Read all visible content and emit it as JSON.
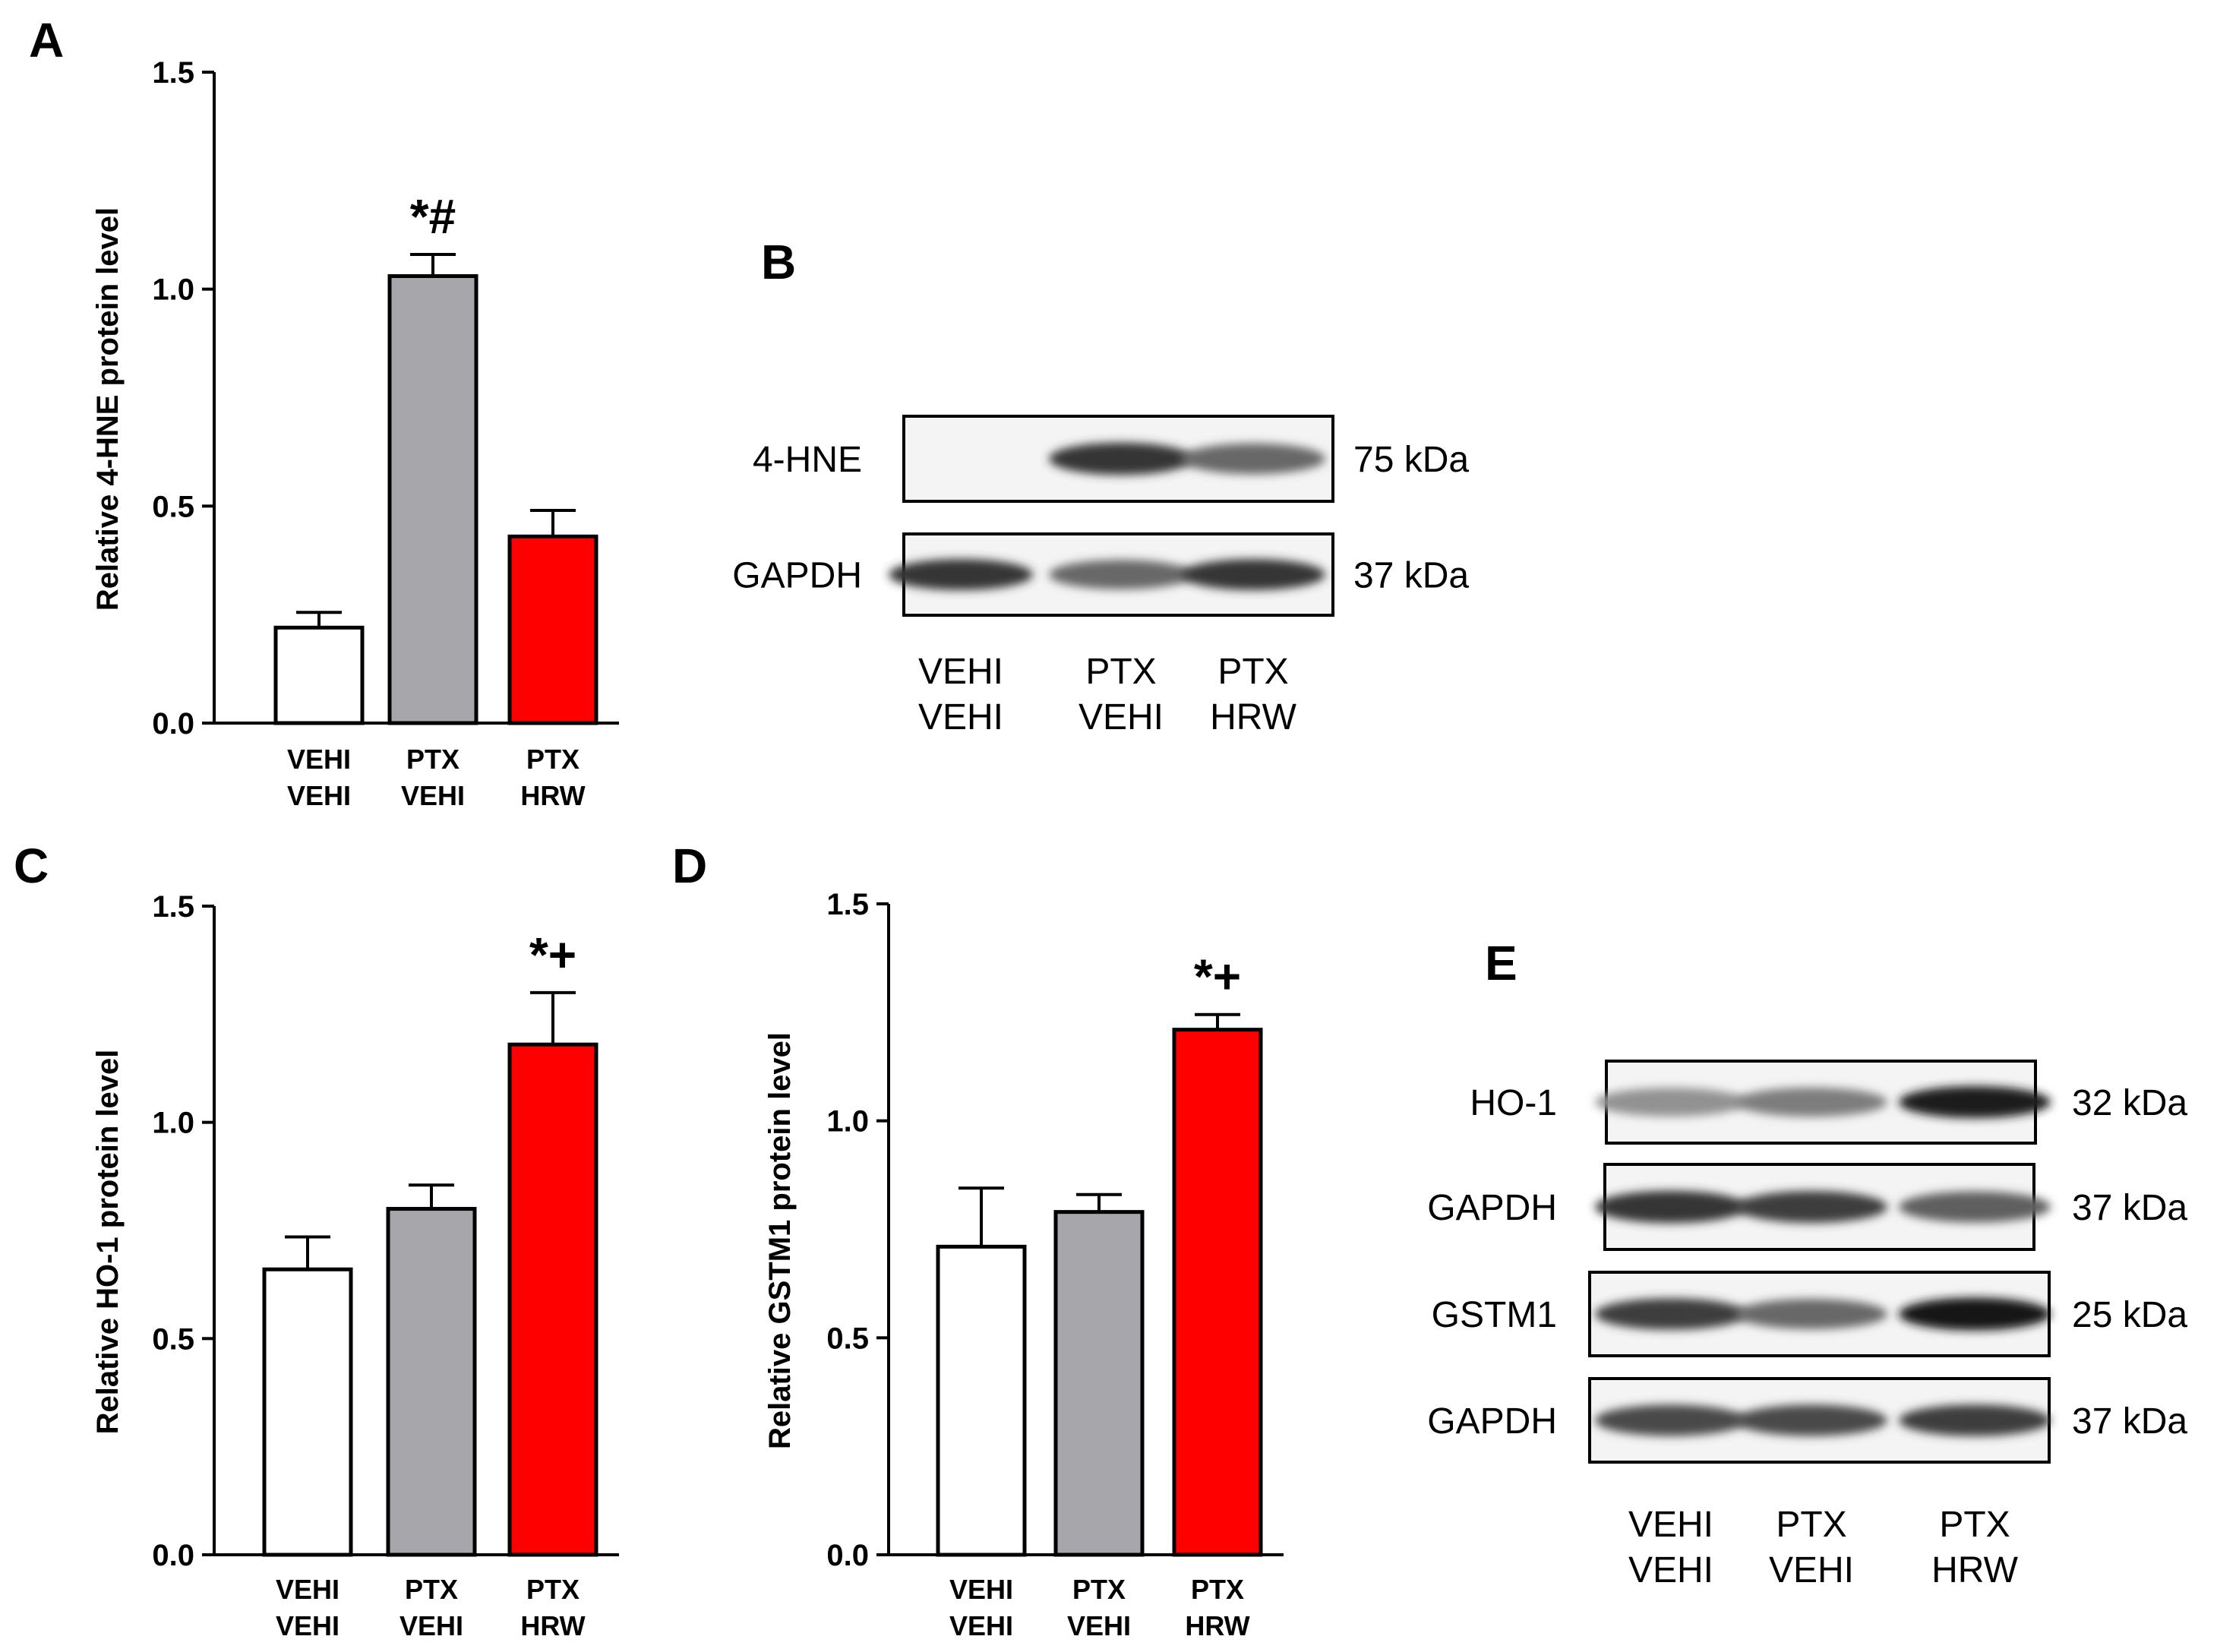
{
  "panel_letters": {
    "A": "A",
    "B": "B",
    "C": "C",
    "D": "D",
    "E": "E"
  },
  "chart_data": [
    {
      "panel": "A",
      "type": "bar",
      "categories": [
        [
          "VEHI",
          "VEHI"
        ],
        [
          "PTX",
          "VEHI"
        ],
        [
          "PTX",
          "HRW"
        ]
      ],
      "values": [
        0.22,
        1.03,
        0.43
      ],
      "errors": [
        0.035,
        0.05,
        0.06
      ],
      "colors": [
        "#ffffff",
        "#a6a6ab",
        "#ff0000"
      ],
      "ylabel": "Relative 4-HNE protein level",
      "ylim": [
        0,
        1.5
      ],
      "yticks": [
        "0.0",
        "0.5",
        "1.0",
        "1.5"
      ],
      "annotations": [
        {
          "category": 1,
          "text": "*#"
        }
      ]
    },
    {
      "panel": "C",
      "type": "bar",
      "categories": [
        [
          "VEHI",
          "VEHI"
        ],
        [
          "PTX",
          "VEHI"
        ],
        [
          "PTX",
          "HRW"
        ]
      ],
      "values": [
        0.66,
        0.8,
        1.18
      ],
      "errors": [
        0.075,
        0.055,
        0.12
      ],
      "colors": [
        "#ffffff",
        "#a6a6ab",
        "#ff0000"
      ],
      "ylabel": "Relative HO-1 protein level",
      "ylim": [
        0,
        1.5
      ],
      "yticks": [
        "0.0",
        "0.5",
        "1.0",
        "1.5"
      ],
      "annotations": [
        {
          "category": 2,
          "text": "*+"
        }
      ]
    },
    {
      "panel": "D",
      "type": "bar",
      "categories": [
        [
          "VEHI",
          "VEHI"
        ],
        [
          "PTX",
          "VEHI"
        ],
        [
          "PTX",
          "HRW"
        ]
      ],
      "values": [
        0.71,
        0.79,
        1.21
      ],
      "errors": [
        0.135,
        0.04,
        0.035
      ],
      "colors": [
        "#ffffff",
        "#a6a6ab",
        "#ff0000"
      ],
      "ylabel": "Relative GSTM1 protein level",
      "ylim": [
        0,
        1.5
      ],
      "yticks": [
        "0.0",
        "0.5",
        "1.0",
        "1.5"
      ],
      "annotations": [
        {
          "category": 2,
          "text": "*+"
        }
      ]
    }
  ],
  "blot_B": {
    "rows": [
      {
        "name": "4-HNE",
        "kda": "75 kDa",
        "intensity": [
          0.03,
          0.85,
          0.6
        ]
      },
      {
        "name": "GAPDH",
        "kda": "37 kDa",
        "intensity": [
          0.85,
          0.6,
          0.85
        ]
      }
    ],
    "lanes": [
      [
        "VEHI",
        "VEHI"
      ],
      [
        "PTX",
        "VEHI"
      ],
      [
        "PTX",
        "HRW"
      ]
    ]
  },
  "blot_E": {
    "rows": [
      {
        "name": "HO-1",
        "kda": "32 kDa",
        "intensity": [
          0.4,
          0.5,
          0.95
        ]
      },
      {
        "name": "GAPDH",
        "kda": "37 kDa",
        "intensity": [
          0.85,
          0.8,
          0.65
        ]
      },
      {
        "name": "GSTM1",
        "kda": "25 kDa",
        "intensity": [
          0.8,
          0.6,
          1.0
        ]
      },
      {
        "name": "GAPDH",
        "kda": "37 kDa",
        "intensity": [
          0.75,
          0.75,
          0.8
        ]
      }
    ],
    "lanes": [
      [
        "VEHI",
        "VEHI"
      ],
      [
        "PTX",
        "VEHI"
      ],
      [
        "PTX",
        "HRW"
      ]
    ]
  }
}
